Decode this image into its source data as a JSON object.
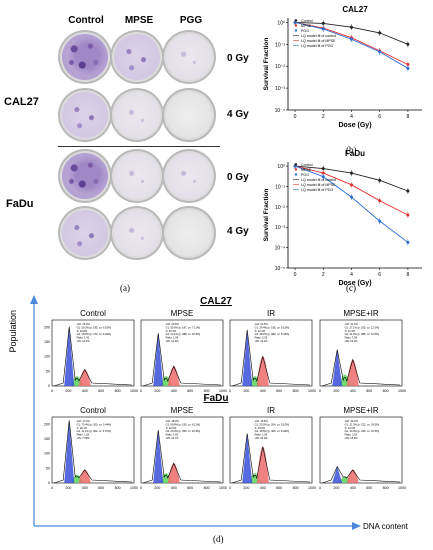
{
  "colony": {
    "col_headers": [
      "Control",
      "MPSE",
      "PGG"
    ],
    "row_labels": [
      "CAL27",
      "FaDu"
    ],
    "dose_labels": [
      "0 Gy",
      "4 Gy",
      "0 Gy",
      "4 Gy"
    ],
    "panel_label": "(a)"
  },
  "chart_data": [
    {
      "type": "line",
      "title": "CAL27",
      "panel_label": "(b)",
      "xlabel": "Dose (Gy)",
      "ylabel": "Survival Fraction",
      "xticks": [
        "0",
        "2",
        "4",
        "6",
        "8"
      ],
      "yticks": [
        "10⁰",
        "10⁻¹",
        "10⁻²",
        "10⁻³",
        "10⁻⁴"
      ],
      "xlim": [
        -0.5,
        9
      ],
      "ylim_log10": [
        -4,
        0.2
      ],
      "legend": [
        "Control",
        "MPSE",
        "PGG",
        "LQ model fit of control",
        "LQ model fit of MPSE",
        "LQ model fit of PGG"
      ],
      "series": [
        {
          "name": "Control",
          "color": "#222222",
          "x": [
            0,
            2,
            4,
            6,
            8
          ],
          "y": [
            1,
            0.9,
            0.6,
            0.33,
            0.1
          ]
        },
        {
          "name": "MPSE",
          "color": "#e03030",
          "x": [
            0,
            2,
            4,
            6,
            8
          ],
          "y": [
            1,
            0.55,
            0.2,
            0.05,
            0.012
          ]
        },
        {
          "name": "PGG",
          "color": "#2e6fd6",
          "x": [
            0,
            2,
            4,
            6,
            8
          ],
          "y": [
            1,
            0.5,
            0.17,
            0.045,
            0.008
          ]
        }
      ]
    },
    {
      "type": "line",
      "title": "FaDu",
      "panel_label": "(c)",
      "xlabel": "Dose (Gy)",
      "ylabel": "Survival Fraction",
      "xticks": [
        "0",
        "2",
        "4",
        "6",
        "8"
      ],
      "yticks": [
        "10⁰",
        "10⁻¹",
        "10⁻²",
        "10⁻³",
        "10⁻⁴",
        "10⁻⁵"
      ],
      "xlim": [
        -0.5,
        9
      ],
      "ylim_log10": [
        -5,
        0.2
      ],
      "legend": [
        "Control",
        "MPSE",
        "PGG",
        "LQ model fit of control",
        "LQ model fit of MPSE",
        "LQ model fit of PGG"
      ],
      "series": [
        {
          "name": "Control",
          "color": "#222222",
          "x": [
            0,
            2,
            4,
            6,
            8
          ],
          "y": [
            1,
            0.75,
            0.45,
            0.2,
            0.06
          ]
        },
        {
          "name": "MPSE",
          "color": "#e03030",
          "x": [
            0,
            2,
            4,
            6,
            8
          ],
          "y": [
            1,
            0.45,
            0.12,
            0.02,
            0.004
          ]
        },
        {
          "name": "PGG",
          "color": "#2e6fd6",
          "x": [
            0,
            2,
            4,
            6,
            8
          ],
          "y": [
            1,
            0.3,
            0.03,
            0.002,
            0.00018
          ]
        }
      ]
    }
  ],
  "flow": {
    "panel_label": "(d)",
    "y_axis": "Population",
    "x_axis": "DNA content",
    "rows": [
      {
        "label": "CAL27",
        "panels": [
          {
            "title": "Control",
            "lines": [
              "•G0: 16.3%",
              "G1: 59.2%  [p: 185, cv: 6.53%]",
              "S: 22.8%",
              "G2: 18.0%  [p: 370, cv: 6.02%]",
              "Ratio: 1.42",
              "•4N: 10.1%"
            ]
          },
          {
            "title": "MPSE",
            "lines": [
              "•G0: 20.8%",
              "G1: 55.6%  [p: 187, cv: 7.11%]",
              "S: 20.3%",
              "G2: 24.1%  [p: 388, cv: 10.6%]",
              "Ratio: 1.99",
              "•4N: 12.6%"
            ]
          },
          {
            "title": "IR",
            "lines": [
              "•G0: 21.5%",
              "G1: 39.4%  [p: 195, cv: 6.15%]",
              "S: 22.4%",
              "G2: 38.2%  [p: 380, cv: 8.44%]",
              "Ratio: 2.05",
              "•4N: 19.1%"
            ]
          },
          {
            "title": "MPSE+IR",
            "lines": [
              "•G0: 31.2%",
              "G1: 27.1%  [p: 205, cv: 12.0%]",
              "S: 31.3%",
              "G2: 41.6%  [p: 388, cv: 11.8%]",
              "Ratio: 1.89",
              "•4N: 23.0%"
            ]
          }
        ]
      },
      {
        "label": "FaDu",
        "panels": [
          {
            "title": "Control",
            "lines": [
              "•G0: 17.4%",
              "G1: 70.4%  [p: 200, cv: 5.44%]",
              "S: 18.1%",
              "G2: 11.1%  [p: 392, cv: 6.07%]",
              "Ratio: 1.82",
              "•4N: 7.59%"
            ]
          },
          {
            "title": "MPSE",
            "lines": [
              "•G0: 18.3%",
              "G1: 56.8%  [p: 180, cv: 6.11%]",
              "S: 22.9%",
              "G2: 20.3%  [p: 359, cv: 10.9%]",
              "Ratio: 1.82",
              "•4N: 14.7%"
            ]
          },
          {
            "title": "IR",
            "lines": [
              "•G0: 19.5%",
              "G1: 25.5%  [p: 204, cv: 5.10%]",
              "S: 26.0%",
              "G2: 48.5%  [p: 406, cv: 8.49%]",
              "Ratio: 1.96",
              "•4N: 30.3%"
            ]
          },
          {
            "title": "MPSE+IR",
            "lines": [
              "•G0: 33.2%",
              "G1: 21.3%  [p: 222, cv: 24.5%]",
              "S: 24.0%",
              "G2: 34.6%  [p: 445, cv: 10.5%]",
              "Ratio: 2.00",
              "•4N: 15.3%"
            ]
          }
        ]
      }
    ],
    "x_ticks": [
      "0",
      "200",
      "400",
      "600",
      "800",
      "1000"
    ],
    "y_ticks": [
      "0",
      "50",
      "100",
      "150",
      "200"
    ]
  }
}
